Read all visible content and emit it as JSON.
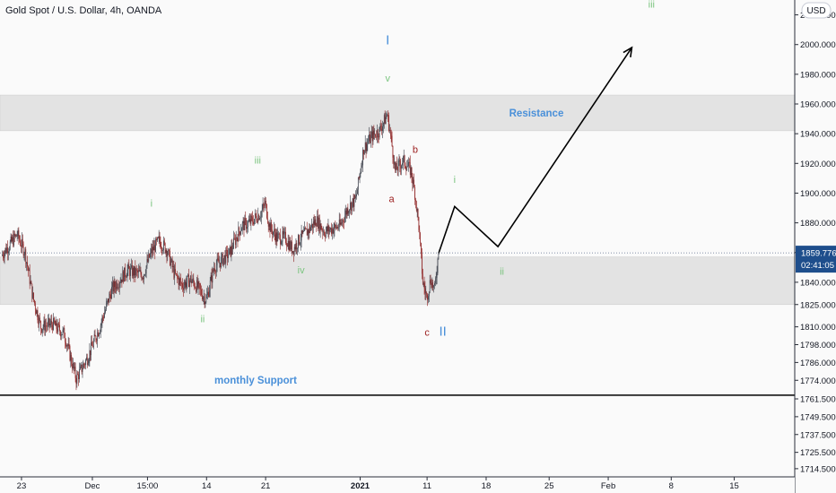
{
  "header": {
    "symbol_title": "Gold Spot / U.S. Dollar, 4h, OANDA",
    "currency_label": "USD"
  },
  "price_axis": {
    "ticks": [
      "2020.000",
      "2000.000",
      "1980.000",
      "1960.000",
      "1940.000",
      "1920.000",
      "1900.000",
      "1880.000",
      "1860.000",
      "1840.000",
      "1825.000",
      "1810.000",
      "1798.000",
      "1786.000",
      "1774.000",
      "1761.500",
      "1749.500",
      "1737.500",
      "1725.500",
      "1714.500"
    ],
    "current_price": "1859.776",
    "countdown": "02:41:05"
  },
  "time_axis": {
    "ticks": [
      "23",
      "Dec",
      "15:00",
      "14",
      "21",
      "2021",
      "11",
      "18",
      "25",
      "Feb",
      "8",
      "15"
    ]
  },
  "colors": {
    "up": "#363a45",
    "down": "#8b1a1a",
    "zone": "#e3e3e3",
    "blue_label": "#4a90d9",
    "green_label": "#7bc47f",
    "red_label": "#9b1c1c",
    "badge": "#1e4e8c"
  },
  "zones": [
    {
      "name": "resistance",
      "top": 1966,
      "bottom": 1942,
      "label": "Resistance"
    },
    {
      "name": "support",
      "top": 1857,
      "bottom": 1825
    }
  ],
  "support_line": {
    "price": 1764,
    "label": "monthly Support"
  },
  "wave_labels": [
    {
      "text": "I",
      "color": "blue_label",
      "bar": 98,
      "price": 2000,
      "size": 15
    },
    {
      "text": "v",
      "color": "green_label",
      "bar": 98,
      "price": 1975,
      "size": 11
    },
    {
      "text": "iii",
      "color": "green_label",
      "bar": 65,
      "price": 1920,
      "size": 11
    },
    {
      "text": "i",
      "color": "green_label",
      "bar": 38,
      "price": 1891,
      "size": 11
    },
    {
      "text": "iv",
      "color": "green_label",
      "bar": 76,
      "price": 1846,
      "size": 11
    },
    {
      "text": "ii",
      "color": "green_label",
      "bar": 51,
      "price": 1813,
      "size": 11
    },
    {
      "text": "b",
      "color": "red_label",
      "bar": 105,
      "price": 1927,
      "size": 11
    },
    {
      "text": "a",
      "color": "red_label",
      "bar": 99,
      "price": 1894,
      "size": 11
    },
    {
      "text": "c",
      "color": "red_label",
      "bar": 108,
      "price": 1804,
      "size": 11
    },
    {
      "text": "II",
      "color": "blue_label",
      "bar": 112,
      "price": 1804,
      "size": 15
    },
    {
      "text": "i",
      "color": "green_label",
      "bar": 115,
      "price": 1907,
      "size": 11
    },
    {
      "text": "ii",
      "color": "green_label",
      "bar": 127,
      "price": 1845,
      "size": 11
    },
    {
      "text": "iii",
      "color": "green_label",
      "bar": 165,
      "price": 2025,
      "size": 11
    }
  ],
  "projection": [
    [
      111,
      1860
    ],
    [
      115,
      1891
    ],
    [
      126,
      1864
    ],
    [
      160,
      1998
    ]
  ],
  "chart_data": {
    "type": "candlestick",
    "title": "Gold Spot / U.S. Dollar, 4h, OANDA",
    "timeframe": "4h",
    "ylim": [
      1709,
      2030
    ],
    "current_price": 1859.776,
    "x_ticks": [
      {
        "label": "23",
        "bar": 5
      },
      {
        "label": "Dec",
        "bar": 23
      },
      {
        "label": "15:00",
        "bar": 37
      },
      {
        "label": "14",
        "bar": 52
      },
      {
        "label": "21",
        "bar": 67
      },
      {
        "label": "2021",
        "bar": 91
      },
      {
        "label": "11",
        "bar": 108
      },
      {
        "label": "18",
        "bar": 123
      },
      {
        "label": "25",
        "bar": 139
      },
      {
        "label": "Feb",
        "bar": 154
      },
      {
        "label": "8",
        "bar": 170
      },
      {
        "label": "15",
        "bar": 186
      }
    ],
    "close_path": [
      [
        0,
        1858
      ],
      [
        4,
        1872
      ],
      [
        6,
        1860
      ],
      [
        8,
        1830
      ],
      [
        10,
        1810
      ],
      [
        13,
        1812
      ],
      [
        16,
        1805
      ],
      [
        19,
        1775
      ],
      [
        22,
        1790
      ],
      [
        25,
        1810
      ],
      [
        28,
        1835
      ],
      [
        32,
        1848
      ],
      [
        36,
        1845
      ],
      [
        38,
        1860
      ],
      [
        40,
        1868
      ],
      [
        42,
        1862
      ],
      [
        44,
        1845
      ],
      [
        46,
        1838
      ],
      [
        48,
        1842
      ],
      [
        50,
        1836
      ],
      [
        52,
        1828
      ],
      [
        54,
        1850
      ],
      [
        56,
        1855
      ],
      [
        58,
        1860
      ],
      [
        61,
        1878
      ],
      [
        63,
        1880
      ],
      [
        66,
        1887
      ],
      [
        67,
        1893
      ],
      [
        68,
        1878
      ],
      [
        70,
        1870
      ],
      [
        72,
        1870
      ],
      [
        74,
        1862
      ],
      [
        76,
        1870
      ],
      [
        78,
        1875
      ],
      [
        80,
        1882
      ],
      [
        82,
        1874
      ],
      [
        84,
        1876
      ],
      [
        86,
        1878
      ],
      [
        88,
        1890
      ],
      [
        90,
        1896
      ],
      [
        92,
        1930
      ],
      [
        94,
        1938
      ],
      [
        96,
        1942
      ],
      [
        98,
        1953
      ],
      [
        99,
        1936
      ],
      [
        100,
        1915
      ],
      [
        102,
        1922
      ],
      [
        104,
        1915
      ],
      [
        105,
        1900
      ],
      [
        106,
        1878
      ],
      [
        107,
        1840
      ],
      [
        108,
        1830
      ],
      [
        109,
        1842
      ],
      [
        110,
        1835
      ],
      [
        111,
        1859.776
      ]
    ]
  }
}
